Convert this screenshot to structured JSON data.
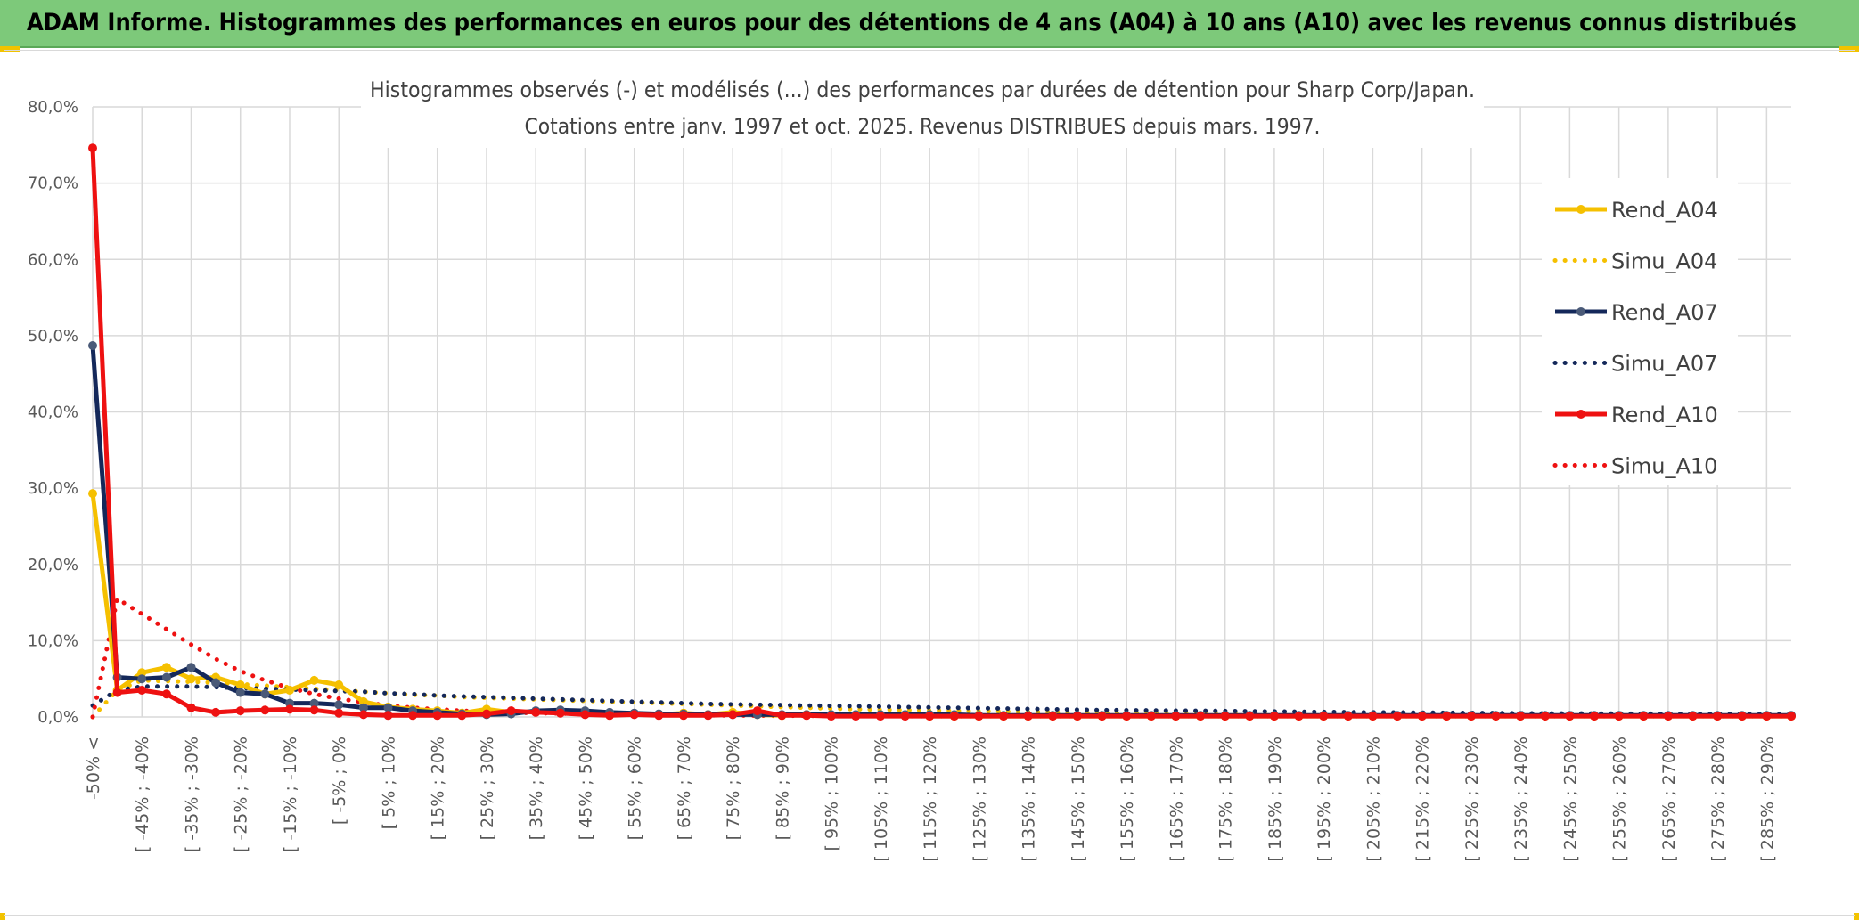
{
  "header": {
    "title": "ADAM Informe. Histogrammes des performances en euros pour des détentions de 4 ans (A04) à 10 ans (A10) avec les revenus connus distribués"
  },
  "chart_data": {
    "type": "line",
    "title_line1": "Histogrammes observés (-) et modélisés (...) des performances par durées de détention pour Sharp Corp/Japan.",
    "title_line2": "Cotations entre janv. 1997 et oct. 2025. Revenus DISTRIBUES depuis mars. 1997.",
    "ylim": [
      0,
      80
    ],
    "yticks": [
      "0,0%",
      "10,0%",
      "20,0%",
      "30,0%",
      "40,0%",
      "50,0%",
      "60,0%",
      "70,0%",
      "80,0%"
    ],
    "x_tick_labels": [
      "-50% <",
      "[ -45% ; -40%",
      "[ -35% ; -30%",
      "[ -25% ; -20%",
      "[ -15% ; -10%",
      "[ -5% ; 0%",
      "[ 5% ; 10%",
      "[ 15% ; 20%",
      "[ 25% ; 30%",
      "[ 35% ; 40%",
      "[ 45% ; 50%",
      "[ 55% ; 60%",
      "[ 65% ; 70%",
      "[ 75% ; 80%",
      "[ 85% ; 90%",
      "[ 95% ; 100%",
      "[ 105% ; 110%",
      "[ 115% ; 120%",
      "[ 125% ; 130%",
      "[ 135% ; 140%",
      "[ 145% ; 150%",
      "[ 155% ; 160%",
      "[ 165% ; 170%",
      "[ 175% ; 180%",
      "[ 185% ; 190%",
      "[ 195% ; 200%",
      "[ 205% ; 210%",
      "[ 215% ; 220%",
      "[ 225% ; 230%",
      "[ 235% ; 240%",
      "[ 245% ; 250%",
      "[ 255% ; 260%",
      "[ 265% ; 270%",
      "[ 275% ; 280%",
      "[ 285% ; 290%"
    ],
    "grid": true,
    "legend_position": "right",
    "series": [
      {
        "name": "Rend_A04",
        "style": "solid",
        "color": "#f5c000",
        "values": [
          29.3,
          3.5,
          5.8,
          6.5,
          5.0,
          5.2,
          4.2,
          3.0,
          3.5,
          4.8,
          4.2,
          2.0,
          1.3,
          1.0,
          0.8,
          0.5,
          1.0,
          0.6,
          0.7,
          0.6,
          0.5,
          0.5,
          0.4,
          0.3,
          0.5,
          0.3,
          0.6,
          0.3,
          0.2,
          0.3,
          0.2,
          0.2,
          0.2,
          0.2,
          0.1,
          0.1,
          0.1,
          0.1,
          0.1,
          0.1,
          0.1,
          0.1,
          0.1,
          0.1,
          0.1,
          0.1,
          0.1,
          0.1,
          0.1,
          0.1,
          0.1,
          0.1,
          0.1,
          0.1,
          0.1,
          0.1,
          0.1,
          0.1,
          0.1,
          0.1,
          0.1,
          0.1,
          0.1,
          0.1,
          0.1,
          0.1,
          0.1,
          0.1,
          0.1,
          0.1
        ]
      },
      {
        "name": "Simu_A04",
        "style": "dotted",
        "color": "#f5c000",
        "values": [
          0.0,
          3.5,
          4.8,
          4.7,
          4.6,
          4.5,
          4.3,
          4.1,
          3.9,
          3.7,
          3.5,
          3.3,
          3.1,
          2.9,
          2.8,
          2.6,
          2.5,
          2.4,
          2.3,
          2.2,
          2.1,
          2.0,
          1.9,
          1.8,
          1.7,
          1.6,
          1.5,
          1.4,
          1.3,
          1.2,
          1.1,
          1.0,
          0.95,
          0.9,
          0.85,
          0.8,
          0.75,
          0.7,
          0.65,
          0.6,
          0.55,
          0.5,
          0.48,
          0.45,
          0.42,
          0.4,
          0.38,
          0.35,
          0.33,
          0.3,
          0.3,
          0.28,
          0.26,
          0.25,
          0.24,
          0.22,
          0.2,
          0.2,
          0.18,
          0.17,
          0.16,
          0.15,
          0.14,
          0.13,
          0.12,
          0.12,
          0.11,
          0.1,
          0.1,
          0.1
        ]
      },
      {
        "name": "Rend_A07",
        "style": "solid",
        "color": "#14285a",
        "values": [
          48.7,
          5.2,
          5.0,
          5.2,
          6.5,
          4.5,
          3.2,
          3.0,
          1.8,
          1.8,
          1.6,
          1.2,
          1.2,
          0.8,
          0.6,
          0.4,
          0.3,
          0.4,
          0.8,
          0.9,
          0.8,
          0.6,
          0.5,
          0.4,
          0.4,
          0.3,
          0.3,
          0.3,
          0.3,
          0.3,
          0.3,
          0.3,
          0.3,
          0.3,
          0.3,
          0.3,
          0.2,
          0.2,
          0.2,
          0.2,
          0.2,
          0.2,
          0.2,
          0.2,
          0.2,
          0.2,
          0.2,
          0.2,
          0.2,
          0.2,
          0.2,
          0.2,
          0.2,
          0.2,
          0.2,
          0.2,
          0.2,
          0.2,
          0.2,
          0.2,
          0.2,
          0.2,
          0.2,
          0.2,
          0.2,
          0.2,
          0.2,
          0.2,
          0.2,
          0.2
        ]
      },
      {
        "name": "Simu_A07",
        "style": "dotted",
        "color": "#14285a",
        "values": [
          1.5,
          3.5,
          4.0,
          4.0,
          4.0,
          3.9,
          3.8,
          3.7,
          3.6,
          3.5,
          3.4,
          3.3,
          3.1,
          3.0,
          2.8,
          2.7,
          2.6,
          2.5,
          2.4,
          2.3,
          2.2,
          2.1,
          2.0,
          1.9,
          1.8,
          1.7,
          1.65,
          1.6,
          1.55,
          1.5,
          1.45,
          1.4,
          1.35,
          1.3,
          1.25,
          1.2,
          1.15,
          1.1,
          1.05,
          1.0,
          0.95,
          0.9,
          0.88,
          0.85,
          0.82,
          0.8,
          0.77,
          0.74,
          0.71,
          0.68,
          0.65,
          0.62,
          0.6,
          0.58,
          0.56,
          0.54,
          0.52,
          0.5,
          0.48,
          0.46,
          0.45,
          0.44,
          0.43,
          0.42,
          0.41,
          0.4,
          0.39,
          0.38,
          0.37,
          0.36
        ]
      },
      {
        "name": "Rend_A10",
        "style": "solid",
        "color": "#ee1111",
        "values": [
          74.6,
          3.2,
          3.5,
          3.0,
          1.2,
          0.6,
          0.8,
          0.9,
          1.0,
          0.9,
          0.5,
          0.3,
          0.2,
          0.2,
          0.2,
          0.2,
          0.4,
          0.8,
          0.6,
          0.5,
          0.3,
          0.2,
          0.3,
          0.2,
          0.2,
          0.2,
          0.3,
          0.8,
          0.2,
          0.2,
          0.1,
          0.1,
          0.1,
          0.1,
          0.1,
          0.1,
          0.1,
          0.1,
          0.1,
          0.1,
          0.1,
          0.1,
          0.1,
          0.1,
          0.1,
          0.1,
          0.1,
          0.1,
          0.1,
          0.1,
          0.1,
          0.1,
          0.1,
          0.1,
          0.1,
          0.1,
          0.1,
          0.1,
          0.1,
          0.1,
          0.1,
          0.1,
          0.1,
          0.1,
          0.1,
          0.1,
          0.1,
          0.1,
          0.1,
          0.1
        ]
      },
      {
        "name": "Simu_A10",
        "style": "dotted",
        "color": "#ee1111",
        "values": [
          0.0,
          15.5,
          13.5,
          11.5,
          9.5,
          7.6,
          6.0,
          4.8,
          3.8,
          3.0,
          2.4,
          1.9,
          1.5,
          1.2,
          1.0,
          0.8,
          0.7,
          0.6,
          0.5,
          0.45,
          0.4,
          0.35,
          0.3,
          0.28,
          0.25,
          0.22,
          0.2,
          0.18,
          0.16,
          0.15,
          0.14,
          0.13,
          0.12,
          0.11,
          0.1,
          0.1,
          0.1,
          0.1,
          0.1,
          0.1,
          0.1,
          0.1,
          0.1,
          0.1,
          0.1,
          0.1,
          0.1,
          0.1,
          0.1,
          0.1,
          0.1,
          0.1,
          0.1,
          0.1,
          0.1,
          0.1,
          0.1,
          0.1,
          0.1,
          0.1,
          0.1,
          0.1,
          0.1,
          0.1,
          0.1,
          0.1,
          0.1,
          0.1,
          0.1,
          0.1
        ]
      }
    ]
  }
}
